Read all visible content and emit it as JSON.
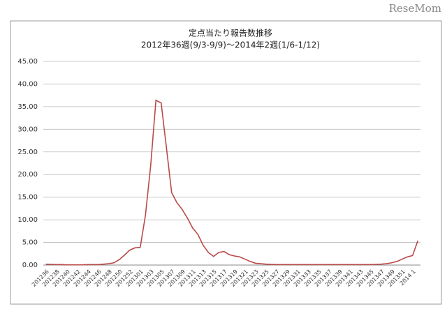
{
  "chart_data": {
    "type": "line",
    "watermark": "ReseMom",
    "title": "定点当たり報告数推移",
    "subtitle": "2012年36週(9/3-9/9)～2014年2週(1/6-1/12)",
    "categories": [
      "201236",
      null,
      "201238",
      null,
      "201240",
      null,
      "201242",
      null,
      "201244",
      null,
      "201246",
      null,
      "201248",
      null,
      "201250",
      null,
      "201252",
      null,
      "201301",
      null,
      "201303",
      null,
      "201305",
      null,
      "201307",
      null,
      "201309",
      null,
      "201311",
      null,
      "201313",
      null,
      "201315",
      null,
      "201317",
      null,
      "201319",
      null,
      "201321",
      null,
      "201323",
      null,
      "201325",
      null,
      "201327",
      null,
      "201329",
      null,
      "201331",
      null,
      "201333",
      null,
      "201335",
      null,
      "201337",
      null,
      "201339",
      null,
      "201341",
      null,
      "201343",
      null,
      "201345",
      null,
      "201347",
      null,
      "201349",
      null,
      "201351",
      null,
      "2014 1",
      null
    ],
    "values": [
      0.2,
      0.15,
      0.1,
      0.1,
      0.05,
      0.05,
      0.05,
      0.05,
      0.1,
      0.1,
      0.1,
      0.2,
      0.3,
      0.5,
      1.2,
      2.2,
      3.3,
      3.8,
      3.9,
      11,
      22,
      36.4,
      35.8,
      26,
      16,
      13.8,
      12.3,
      10.4,
      8.2,
      6.8,
      4.4,
      2.8,
      1.9,
      2.8,
      3.0,
      2.3,
      2.0,
      1.8,
      1.3,
      0.8,
      0.4,
      0.3,
      0.2,
      0.15,
      0.1,
      0.1,
      0.1,
      0.1,
      0.1,
      0.1,
      0.1,
      0.1,
      0.1,
      0.1,
      0.1,
      0.1,
      0.1,
      0.1,
      0.1,
      0.1,
      0.1,
      0.1,
      0.1,
      0.15,
      0.2,
      0.3,
      0.5,
      0.8,
      1.3,
      1.8,
      2.1,
      5.4
    ],
    "color": "#b94a48",
    "ylim": [
      0,
      45
    ],
    "yticks": [
      {
        "value": 0,
        "label": "0.00"
      },
      {
        "value": 5,
        "label": "5.00"
      },
      {
        "value": 10,
        "label": "10.00"
      },
      {
        "value": 15,
        "label": "15.00"
      },
      {
        "value": 20,
        "label": "20.00"
      },
      {
        "value": 25,
        "label": "25.00"
      },
      {
        "value": 30,
        "label": "30.00"
      },
      {
        "value": 35,
        "label": "35.00"
      },
      {
        "value": 40,
        "label": "40.00"
      },
      {
        "value": 45,
        "label": "45.00"
      }
    ],
    "grid": true
  }
}
